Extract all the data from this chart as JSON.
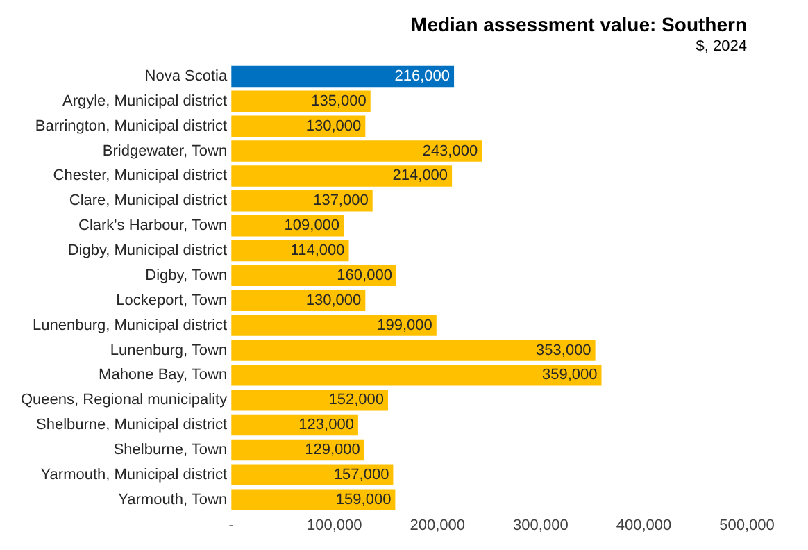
{
  "chart_data": {
    "type": "bar",
    "orientation": "horizontal",
    "title": "Median assessment value: Southern",
    "subtitle": "$, 2024",
    "categories": [
      "Nova Scotia",
      "Argyle, Municipal district",
      "Barrington, Municipal district",
      "Bridgewater, Town",
      "Chester, Municipal district",
      "Clare, Municipal district",
      "Clark's Harbour, Town",
      "Digby, Municipal district",
      "Digby, Town",
      "Lockeport, Town",
      "Lunenburg, Municipal district",
      "Lunenburg, Town",
      "Mahone Bay, Town",
      "Queens, Regional municipality",
      "Shelburne, Municipal district",
      "Shelburne, Town",
      "Yarmouth, Municipal district",
      "Yarmouth, Town"
    ],
    "values": [
      216000,
      135000,
      130000,
      243000,
      214000,
      137000,
      109000,
      114000,
      160000,
      130000,
      199000,
      353000,
      359000,
      152000,
      123000,
      129000,
      157000,
      159000
    ],
    "colors": [
      "#0070c0",
      "#ffc000",
      "#ffc000",
      "#ffc000",
      "#ffc000",
      "#ffc000",
      "#ffc000",
      "#ffc000",
      "#ffc000",
      "#ffc000",
      "#ffc000",
      "#ffc000",
      "#ffc000",
      "#ffc000",
      "#ffc000",
      "#ffc000",
      "#ffc000",
      "#ffc000"
    ],
    "value_labels": [
      "216,000",
      "135,000",
      "130,000",
      "243,000",
      "214,000",
      "137,000",
      "109,000",
      "114,000",
      "160,000",
      "130,000",
      "199,000",
      "353,000",
      "359,000",
      "152,000",
      "123,000",
      "129,000",
      "157,000",
      "159,000"
    ],
    "xlim": [
      0,
      500000
    ],
    "xticks": [
      {
        "value": 0,
        "label": "-"
      },
      {
        "value": 100000,
        "label": "100,000"
      },
      {
        "value": 200000,
        "label": "200,000"
      },
      {
        "value": 300000,
        "label": "300,000"
      },
      {
        "value": 400000,
        "label": "400,000"
      },
      {
        "value": 500000,
        "label": "500,000"
      }
    ],
    "grid": false,
    "legend": false
  }
}
